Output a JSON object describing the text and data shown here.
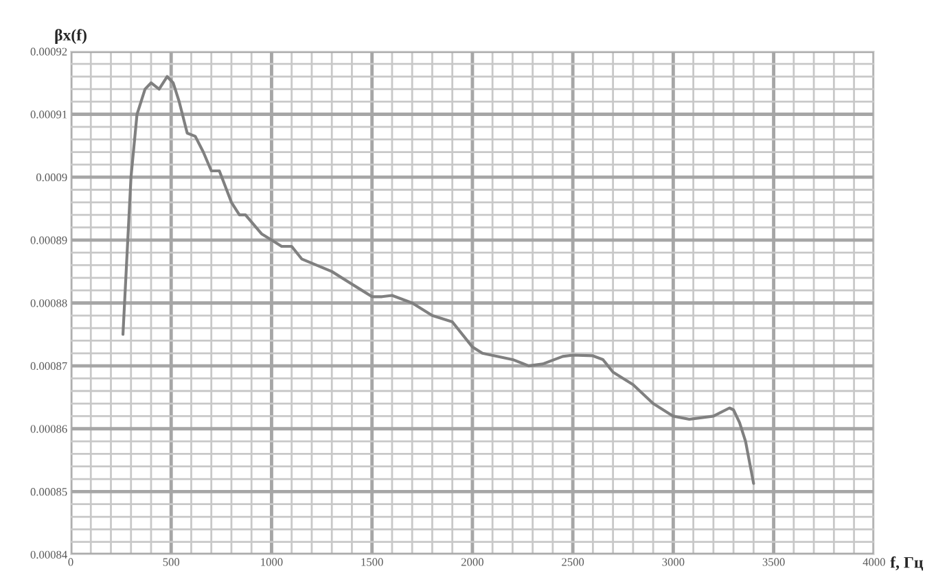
{
  "chart_data": {
    "type": "line",
    "xlabel": "f, Гц",
    "ylabel": "βx(f)",
    "xlim": [
      0,
      4000
    ],
    "ylim": [
      0.00084,
      0.00092
    ],
    "xticks": [
      0,
      {
        "value": 100,
        "label": null
      },
      {
        "value": 200,
        "label": null
      },
      {
        "value": 300,
        "label": null
      },
      {
        "value": 400,
        "label": null
      },
      500,
      {
        "value": 600,
        "label": null
      },
      {
        "value": 700,
        "label": null
      },
      {
        "value": 800,
        "label": null
      },
      {
        "value": 900,
        "label": null
      },
      1000,
      {
        "value": 1100,
        "label": null
      },
      {
        "value": 1200,
        "label": null
      },
      {
        "value": 1300,
        "label": null
      },
      {
        "value": 1400,
        "label": null
      },
      1500,
      {
        "value": 1600,
        "label": null
      },
      {
        "value": 1700,
        "label": null
      },
      {
        "value": 1800,
        "label": null
      },
      {
        "value": 1900,
        "label": null
      },
      2000,
      {
        "value": 2100,
        "label": null
      },
      {
        "value": 2200,
        "label": null
      },
      {
        "value": 2300,
        "label": null
      },
      {
        "value": 2400,
        "label": null
      },
      2500,
      {
        "value": 2600,
        "label": null
      },
      {
        "value": 2700,
        "label": null
      },
      {
        "value": 2800,
        "label": null
      },
      {
        "value": 2900,
        "label": null
      },
      3000,
      {
        "value": 3100,
        "label": null
      },
      {
        "value": 3200,
        "label": null
      },
      {
        "value": 3300,
        "label": null
      },
      {
        "value": 3400,
        "label": null
      },
      3500,
      {
        "value": 3600,
        "label": null
      },
      {
        "value": 3700,
        "label": null
      },
      {
        "value": 3800,
        "label": null
      },
      {
        "value": 3900,
        "label": null
      },
      4000
    ],
    "yticks": [
      0.00084,
      {
        "value": 0.000842,
        "label": null
      },
      {
        "value": 0.000844,
        "label": null
      },
      {
        "value": 0.000846,
        "label": null
      },
      {
        "value": 0.000848,
        "label": null
      },
      0.00085,
      {
        "value": 0.000852,
        "label": null
      },
      {
        "value": 0.000854,
        "label": null
      },
      {
        "value": 0.000856,
        "label": null
      },
      {
        "value": 0.000858,
        "label": null
      },
      0.00086,
      {
        "value": 0.000862,
        "label": null
      },
      {
        "value": 0.000864,
        "label": null
      },
      {
        "value": 0.000866,
        "label": null
      },
      {
        "value": 0.000868,
        "label": null
      },
      0.00087,
      {
        "value": 0.000872,
        "label": null
      },
      {
        "value": 0.000874,
        "label": null
      },
      {
        "value": 0.000876,
        "label": null
      },
      {
        "value": 0.000878,
        "label": null
      },
      0.00088,
      {
        "value": 0.000882,
        "label": null
      },
      {
        "value": 0.000884,
        "label": null
      },
      {
        "value": 0.000886,
        "label": null
      },
      {
        "value": 0.000888,
        "label": null
      },
      0.00089,
      {
        "value": 0.000892,
        "label": null
      },
      {
        "value": 0.000894,
        "label": null
      },
      {
        "value": 0.000896,
        "label": null
      },
      {
        "value": 0.000898,
        "label": null
      },
      0.0009,
      {
        "value": 0.000902,
        "label": null
      },
      {
        "value": 0.000904,
        "label": null
      },
      {
        "value": 0.000906,
        "label": null
      },
      {
        "value": 0.000908,
        "label": null
      },
      0.00091,
      {
        "value": 0.000912,
        "label": null
      },
      {
        "value": 0.000914,
        "label": null
      },
      {
        "value": 0.000916,
        "label": null
      },
      {
        "value": 0.000918,
        "label": null
      },
      0.00092
    ],
    "grid": true,
    "marker": "none",
    "line_style": "solid",
    "series": [
      {
        "color": "#808080",
        "x": [
          260,
          300,
          330,
          370,
          400,
          440,
          480,
          510,
          540,
          580,
          620,
          660,
          700,
          740,
          800,
          840,
          870,
          950,
          1000,
          1050,
          1100,
          1150,
          1300,
          1450,
          1500,
          1550,
          1600,
          1700,
          1800,
          1900,
          2000,
          2050,
          2200,
          2280,
          2350,
          2450,
          2500,
          2600,
          2650,
          2700,
          2800,
          2900,
          3000,
          3080,
          3200,
          3280,
          3300,
          3330,
          3360,
          3400
        ],
        "values": [
          0.000875,
          0.0009,
          0.00091,
          0.000914,
          0.000915,
          0.000914,
          0.000916,
          0.000915,
          0.000912,
          0.000907,
          0.0009065,
          0.000904,
          0.000901,
          0.000901,
          0.000896,
          0.000894,
          0.000894,
          0.000891,
          0.00089,
          0.000889,
          0.000889,
          0.000887,
          0.000885,
          0.000882,
          0.000881,
          0.000881,
          0.0008812,
          0.00088,
          0.000878,
          0.000877,
          0.000873,
          0.000872,
          0.000871,
          0.00087,
          0.0008703,
          0.0008715,
          0.0008717,
          0.0008716,
          0.000871,
          0.000869,
          0.000867,
          0.000864,
          0.000862,
          0.0008615,
          0.000862,
          0.0008633,
          0.000863,
          0.000861,
          0.000858,
          0.0008513
        ]
      }
    ]
  }
}
